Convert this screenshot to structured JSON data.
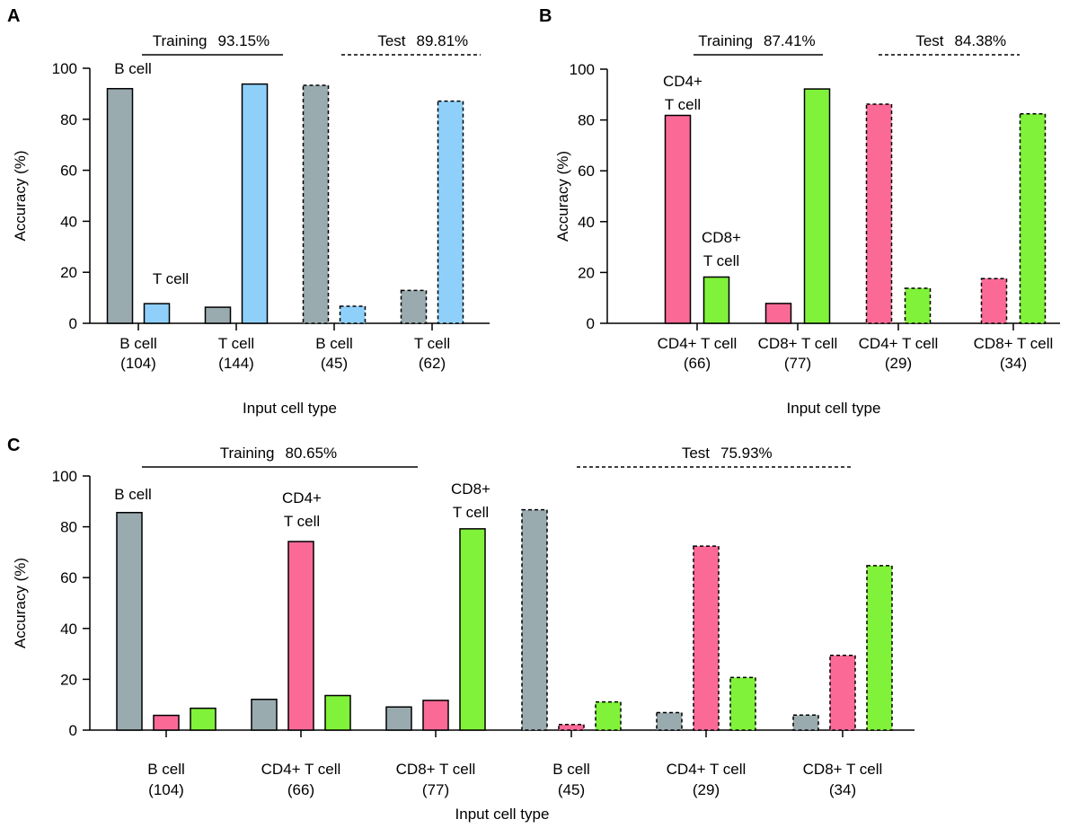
{
  "colors": {
    "B cell": "#9aabaf",
    "T cell": "#8fd0fb",
    "CD4+ T cell": "#fb6a97",
    "CD8+ T cell": "#80f23a"
  },
  "chart_data": [
    {
      "panel": "A",
      "type": "bar",
      "ylabel": "Accuracy (%)",
      "xlabel": "Input cell type",
      "ylim": [
        0,
        100
      ],
      "yticks": [
        "0",
        "20",
        "40",
        "60",
        "80",
        "100"
      ],
      "categories": [
        [
          "B cell",
          "(104)"
        ],
        [
          "T cell",
          "(144)"
        ],
        [
          "B cell",
          "(45)"
        ],
        [
          "T cell",
          "(62)"
        ]
      ],
      "groups": [
        "Training",
        "Training",
        "Test",
        "Test"
      ],
      "series": [
        {
          "name": "B cell",
          "values": [
            92.0,
            6.3,
            93.3,
            12.9
          ]
        },
        {
          "name": "T cell",
          "values": [
            7.7,
            93.8,
            6.7,
            87.1
          ]
        }
      ],
      "bar_labels": [
        [
          "B cell"
        ],
        [
          "T cell"
        ]
      ],
      "group_labels": [
        {
          "label": "Training",
          "value": "93.15%",
          "style": "solid"
        },
        {
          "label": "Test",
          "value": "89.81%",
          "style": "dashed"
        }
      ]
    },
    {
      "panel": "B",
      "type": "bar",
      "ylabel": "Accuracy (%)",
      "xlabel": "Input cell type",
      "ylim": [
        0,
        100
      ],
      "yticks": [
        "0",
        "20",
        "40",
        "60",
        "80",
        "100"
      ],
      "categories": [
        [
          "CD4+ T cell",
          "(66)"
        ],
        [
          "CD8+ T cell",
          "(77)"
        ],
        [
          "CD4+ T cell",
          "(29)"
        ],
        [
          "CD8+ T cell",
          "(34)"
        ]
      ],
      "groups": [
        "Training",
        "Training",
        "Test",
        "Test"
      ],
      "series": [
        {
          "name": "CD4+ T cell",
          "values": [
            81.8,
            7.8,
            86.2,
            17.6
          ]
        },
        {
          "name": "CD8+ T cell",
          "values": [
            18.2,
            92.2,
            13.8,
            82.4
          ]
        }
      ],
      "bar_labels": [
        [
          "CD4+",
          "T cell"
        ],
        [
          "CD8+",
          "T cell"
        ]
      ],
      "group_labels": [
        {
          "label": "Training",
          "value": "87.41%",
          "style": "solid"
        },
        {
          "label": "Test",
          "value": "84.38%",
          "style": "dashed"
        }
      ]
    },
    {
      "panel": "C",
      "type": "bar",
      "ylabel": "Accuracy (%)",
      "xlabel": "Input cell type",
      "ylim": [
        0,
        100
      ],
      "yticks": [
        "0",
        "20",
        "40",
        "60",
        "80",
        "100"
      ],
      "categories": [
        [
          "B cell",
          "(104)"
        ],
        [
          "CD4+ T cell",
          "(66)"
        ],
        [
          "CD8+ T cell",
          "(77)"
        ],
        [
          "B cell",
          "(45)"
        ],
        [
          "CD4+ T cell",
          "(29)"
        ],
        [
          "CD8+ T cell",
          "(34)"
        ]
      ],
      "groups": [
        "Training",
        "Training",
        "Training",
        "Test",
        "Test",
        "Test"
      ],
      "series": [
        {
          "name": "B cell",
          "values": [
            85.6,
            12.1,
            9.1,
            86.7,
            6.9,
            5.9
          ]
        },
        {
          "name": "CD4+ T cell",
          "values": [
            5.8,
            74.2,
            11.7,
            2.2,
            72.4,
            29.4
          ]
        },
        {
          "name": "CD8+ T cell",
          "values": [
            8.6,
            13.6,
            79.2,
            11.1,
            20.7,
            64.7
          ]
        }
      ],
      "bar_labels": [
        [
          "B cell"
        ],
        [
          "CD4+",
          "T cell"
        ],
        [
          "CD8+",
          "T cell"
        ]
      ],
      "group_labels": [
        {
          "label": "Training",
          "value": "80.65%",
          "style": "solid"
        },
        {
          "label": "Test",
          "value": "75.93%",
          "style": "dashed"
        }
      ]
    }
  ]
}
